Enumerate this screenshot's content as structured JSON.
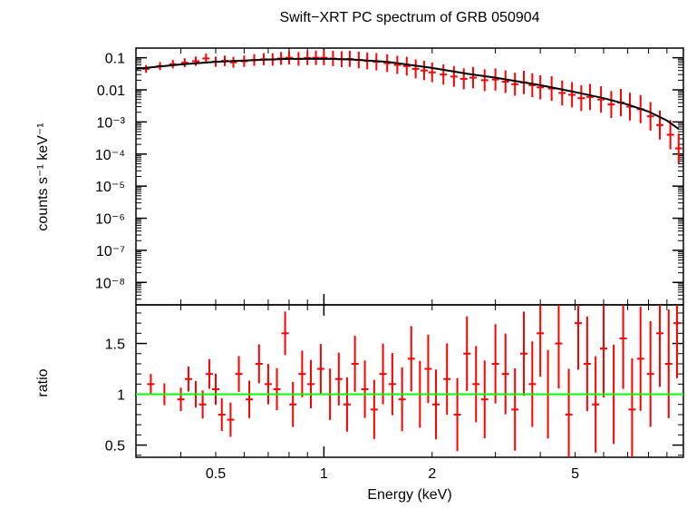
{
  "title": "Swift−XRT PC spectrum of GRB 050904",
  "colors": {
    "data": "#ff0000",
    "model": "#000000",
    "ratio_line": "#00ff00",
    "axes": "#000000"
  },
  "chart_data": [
    {
      "type": "scatter",
      "panel": "spectrum",
      "title": "Swift−XRT PC spectrum of GRB 050904",
      "xlabel": "",
      "ylabel": "counts s⁻¹ keV⁻¹",
      "xscale": "log",
      "yscale": "log",
      "xlim": [
        0.3,
        10
      ],
      "ylim": [
        2e-09,
        0.2
      ],
      "y_tick_labels": [
        "0.1",
        "0.01",
        "10⁻³",
        "10⁻⁴",
        "10⁻⁵",
        "10⁻⁶",
        "10⁻⁷",
        "10⁻⁸"
      ],
      "y_tick_values": [
        0.1,
        0.01,
        0.001,
        0.0001,
        1e-05,
        1e-06,
        1e-07,
        1e-08
      ],
      "series": [
        {
          "kind": "data-with-errors",
          "x": [
            0.32,
            0.35,
            0.38,
            0.41,
            0.44,
            0.47,
            0.5,
            0.53,
            0.56,
            0.6,
            0.64,
            0.68,
            0.72,
            0.76,
            0.8,
            0.85,
            0.9,
            0.95,
            1.0,
            1.06,
            1.12,
            1.18,
            1.25,
            1.32,
            1.4,
            1.5,
            1.6,
            1.7,
            1.8,
            1.9,
            2.0,
            2.15,
            2.3,
            2.45,
            2.6,
            2.8,
            3.0,
            3.2,
            3.4,
            3.6,
            3.8,
            4.0,
            4.3,
            4.6,
            4.9,
            5.2,
            5.5,
            5.9,
            6.3,
            6.7,
            7.1,
            7.6,
            8.1,
            8.6,
            9.2,
            9.7
          ],
          "y": [
            0.045,
            0.055,
            0.063,
            0.07,
            0.078,
            0.095,
            0.075,
            0.08,
            0.072,
            0.078,
            0.085,
            0.09,
            0.088,
            0.095,
            0.1,
            0.092,
            0.098,
            0.1,
            0.1,
            0.095,
            0.09,
            0.092,
            0.085,
            0.08,
            0.075,
            0.068,
            0.06,
            0.055,
            0.045,
            0.04,
            0.035,
            0.03,
            0.026,
            0.022,
            0.024,
            0.02,
            0.021,
            0.018,
            0.015,
            0.017,
            0.014,
            0.012,
            0.011,
            0.008,
            0.007,
            0.0055,
            0.006,
            0.005,
            0.0035,
            0.004,
            0.003,
            0.0025,
            0.0015,
            0.0008,
            0.0004,
            0.00015
          ]
        },
        {
          "kind": "model",
          "x": [
            0.3,
            0.4,
            0.5,
            0.6,
            0.7,
            0.8,
            1.0,
            1.2,
            1.5,
            2.0,
            2.5,
            3.0,
            4.0,
            5.0,
            6.0,
            7.0,
            8.0,
            9.0,
            9.7
          ],
          "y": [
            0.045,
            0.062,
            0.075,
            0.082,
            0.088,
            0.092,
            0.093,
            0.088,
            0.075,
            0.048,
            0.032,
            0.024,
            0.014,
            0.0085,
            0.0055,
            0.0035,
            0.0021,
            0.0011,
            0.0006
          ]
        }
      ]
    },
    {
      "type": "scatter",
      "panel": "ratio",
      "xlabel": "Energy (keV)",
      "ylabel": "ratio",
      "xscale": "log",
      "xlim": [
        0.3,
        10
      ],
      "ylim": [
        0.38,
        1.88
      ],
      "x_tick_labels": [
        "0.5",
        "1",
        "2",
        "5"
      ],
      "x_tick_values": [
        0.5,
        1,
        2,
        5
      ],
      "y_tick_labels": [
        "0.5",
        "1",
        "1.5"
      ],
      "y_tick_values": [
        0.5,
        1,
        1.5
      ],
      "reference_line": 1,
      "series": [
        {
          "kind": "data-with-errors",
          "x": [
            0.33,
            0.36,
            0.4,
            0.42,
            0.44,
            0.46,
            0.48,
            0.5,
            0.52,
            0.55,
            0.58,
            0.62,
            0.66,
            0.7,
            0.74,
            0.78,
            0.82,
            0.87,
            0.92,
            0.98,
            1.04,
            1.1,
            1.16,
            1.22,
            1.3,
            1.38,
            1.46,
            1.55,
            1.65,
            1.75,
            1.85,
            1.95,
            2.05,
            2.2,
            2.35,
            2.5,
            2.65,
            2.8,
            3.0,
            3.2,
            3.4,
            3.6,
            3.8,
            4.0,
            4.2,
            4.5,
            4.8,
            5.1,
            5.4,
            5.7,
            6.0,
            6.4,
            6.8,
            7.2,
            7.6,
            8.1,
            8.6,
            9.1,
            9.6
          ],
          "y": [
            1.1,
            1.0,
            0.95,
            1.15,
            1.0,
            0.9,
            1.2,
            1.05,
            0.8,
            0.75,
            1.2,
            0.95,
            1.3,
            1.1,
            1.05,
            1.6,
            0.9,
            1.2,
            1.1,
            1.25,
            1.0,
            1.15,
            0.9,
            1.3,
            1.05,
            0.85,
            1.2,
            1.1,
            0.95,
            1.35,
            1.0,
            1.25,
            0.9,
            1.15,
            0.8,
            1.4,
            1.1,
            0.95,
            1.3,
            1.2,
            0.85,
            1.4,
            1.1,
            1.6,
            1.0,
            1.5,
            0.8,
            1.7,
            1.3,
            0.9,
            1.45,
            1.0,
            1.55,
            0.85,
            1.35,
            1.2,
            1.6,
            1.3,
            1.7
          ]
        }
      ]
    }
  ]
}
